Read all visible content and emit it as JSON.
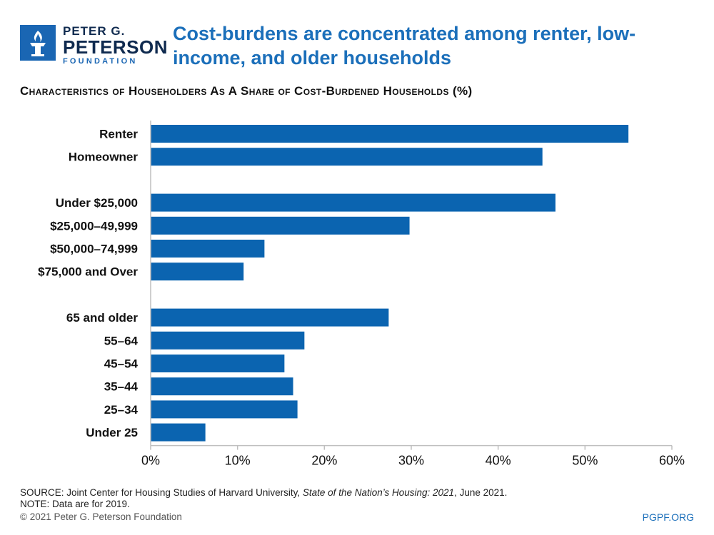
{
  "logo": {
    "line1": "PETER G.",
    "line2": "PETERSON",
    "line3": "FOUNDATION"
  },
  "title": "Cost-burdens are concentrated among renter, low-income, and older households",
  "subtitle": "Characteristics of Householders As A Share of Cost-Burdened Households (%)",
  "colors": {
    "bar": "#0b64b0",
    "title": "#1b6fba",
    "axis": "#bfbfbf"
  },
  "chart_data": {
    "type": "bar",
    "orientation": "horizontal",
    "categories": [
      "Renter",
      "Homeowner",
      "Under $25,000",
      "$25,000–49,999",
      "$50,000–74,999",
      "$75,000 and Over",
      "65 and older",
      "55–64",
      "45–54",
      "35–44",
      "25–34",
      "Under 25"
    ],
    "groups": [
      [
        "Renter",
        "Homeowner"
      ],
      [
        "Under $25,000",
        "$25,000–49,999",
        "$50,000–74,999",
        "$75,000 and Over"
      ],
      [
        "65 and older",
        "55–64",
        "45–54",
        "35–44",
        "25–34",
        "Under 25"
      ]
    ],
    "values": [
      55,
      45.1,
      46.6,
      29.8,
      13.1,
      10.7,
      27.4,
      17.7,
      15.4,
      16.4,
      16.9,
      6.3
    ],
    "xlim": [
      0,
      60
    ],
    "xticks": [
      0,
      10,
      20,
      30,
      40,
      50,
      60
    ],
    "xtick_labels": [
      "0%",
      "10%",
      "20%",
      "30%",
      "40%",
      "50%",
      "60%"
    ],
    "grid": false,
    "legend": "none"
  },
  "footer": {
    "source_prefix": "SOURCE: Joint Center for Housing Studies of Harvard University, ",
    "source_title": "State of the Nation’s Housing: 2021",
    "source_suffix": ", June 2021.",
    "note": "NOTE: Data are for 2019.",
    "copyright": "© 2021 Peter G. Peterson Foundation",
    "site": "PGPF.ORG"
  }
}
